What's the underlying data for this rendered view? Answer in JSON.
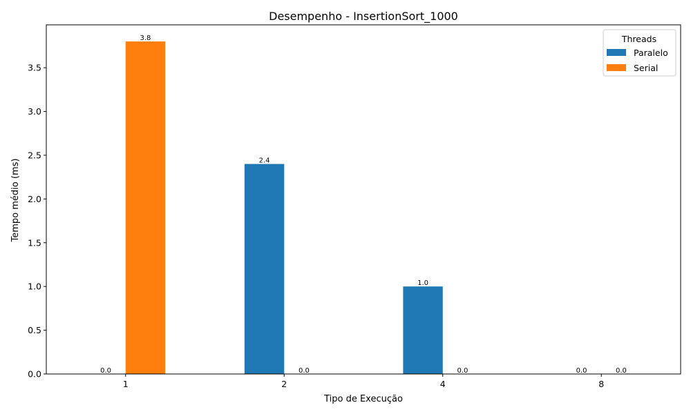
{
  "chart_data": {
    "type": "bar",
    "title": "Desempenho - InsertionSort_1000",
    "xlabel": "Tipo de Execução",
    "ylabel": "Tempo médio (ms)",
    "categories": [
      "1",
      "2",
      "4",
      "8"
    ],
    "series": [
      {
        "name": "Paralelo",
        "values": [
          0.0,
          2.4,
          1.0,
          0.0
        ],
        "color": "#1f77b4"
      },
      {
        "name": "Serial",
        "values": [
          3.8,
          0.0,
          0.0,
          0.0
        ],
        "color": "#ff7f0e"
      }
    ],
    "data_labels": [
      [
        "0.0",
        "2.4",
        "1.0",
        "0.0"
      ],
      [
        "3.8",
        "0.0",
        "0.0",
        "0.0"
      ]
    ],
    "ylim": [
      0,
      3.99
    ],
    "yticks": [
      0.0,
      0.5,
      1.0,
      1.5,
      2.0,
      2.5,
      3.0,
      3.5
    ],
    "ytick_labels": [
      "0.0",
      "0.5",
      "1.0",
      "1.5",
      "2.0",
      "2.5",
      "3.0",
      "3.5"
    ],
    "legend": {
      "title": "Threads",
      "position": "top-right"
    },
    "grid": false
  }
}
